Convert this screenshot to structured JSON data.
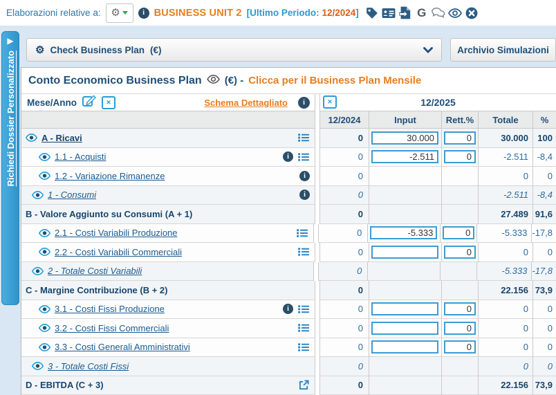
{
  "topbar": {
    "label": "Elaborazioni relative a:",
    "business_unit": "BUSINESS UNIT 2",
    "period_prefix": "[Ultimo Periodo:",
    "period": "12/2024",
    "period_suffix": "]",
    "google_letter": "G"
  },
  "sidebar": {
    "tab_label": "Richiedi Dossier Personalizzato"
  },
  "toolbar": {
    "plan_selector_label": "Check Business Plan",
    "plan_selector_currency": "(€)",
    "archive_button": "Archivio Simulazioni"
  },
  "panel": {
    "title": "Conto Economico Business Plan",
    "currency_suffix": "(€) -",
    "monthly_link": "Clicca per il Business Plan Mensile"
  },
  "table": {
    "corner_header": "Mese/Anno",
    "schema_link": "Schema Dettagliato",
    "period_header": "12/2025",
    "columns": [
      "12/2024",
      "Input",
      "Rett.%",
      "Totale",
      "%"
    ],
    "rows": [
      {
        "label": "A - Ricavi",
        "style": "alink",
        "indent": 0,
        "eye": true,
        "list": true,
        "prev": "0",
        "input": "30.000",
        "rett": "0",
        "totale": "30.000",
        "pct": "100"
      },
      {
        "label": "1.1 - Acquisti",
        "style": "det",
        "indent": 2,
        "eye": true,
        "info": true,
        "list": true,
        "prev": "0",
        "input": "-2.511",
        "rett": "0",
        "totale": "-2.511",
        "pct": "-8,4"
      },
      {
        "label": "1.2 - Variazione Rimanenze",
        "style": "det",
        "indent": 2,
        "eye": true,
        "info": true,
        "prev": "0",
        "totale": "0",
        "pct": "0"
      },
      {
        "label": "1 - Consumi",
        "style": "tot",
        "indent": 1,
        "eye": true,
        "info": true,
        "prev": "0",
        "totale": "-2.511",
        "pct": "-8,4"
      },
      {
        "label": "B - Valore Aggiunto su Consumi (A + 1)",
        "style": "sec",
        "indent": 0,
        "prev": "0",
        "totale": "27.489",
        "pct": "91,6"
      },
      {
        "label": "2.1 - Costi Variabili Produzione",
        "style": "det",
        "indent": 2,
        "eye": true,
        "list": true,
        "prev": "0",
        "input": "-5.333",
        "rett": "0",
        "totale": "-5.333",
        "pct": "-17,8"
      },
      {
        "label": "2.2 - Costi Variabili Commerciali",
        "style": "det",
        "indent": 2,
        "eye": true,
        "list": true,
        "prev": "0",
        "input": "",
        "rett": "0",
        "totale": "0",
        "pct": "0"
      },
      {
        "label": "2 - Totale Costi Variabili",
        "style": "tot",
        "indent": 1,
        "eye": true,
        "prev": "0",
        "totale": "-5.333",
        "pct": "-17,8"
      },
      {
        "label": "C - Margine Contribuzione (B + 2)",
        "style": "sec",
        "indent": 0,
        "prev": "0",
        "totale": "22.156",
        "pct": "73,9"
      },
      {
        "label": "3.1 - Costi Fissi Produzione",
        "style": "det",
        "indent": 2,
        "eye": true,
        "info": true,
        "list": true,
        "prev": "0",
        "input": "",
        "rett": "0",
        "totale": "0",
        "pct": "0"
      },
      {
        "label": "3.2 - Costi Fissi Commerciali",
        "style": "det",
        "indent": 2,
        "eye": true,
        "list": true,
        "prev": "0",
        "input": "",
        "rett": "0",
        "totale": "0",
        "pct": "0"
      },
      {
        "label": "3.3 - Costi Generali Amministrativi",
        "style": "det",
        "indent": 2,
        "eye": true,
        "list": true,
        "prev": "0",
        "input": "",
        "rett": "0",
        "totale": "0",
        "pct": "0"
      },
      {
        "label": "3 - Totale Costi Fissi",
        "style": "tot",
        "indent": 1,
        "eye": true,
        "prev": "0",
        "totale": "0",
        "pct": "0"
      },
      {
        "label": "D - EBITDA (C + 3)",
        "style": "sec",
        "indent": 0,
        "ext": true,
        "prev": "0",
        "totale": "22.156",
        "pct": "73,9"
      }
    ]
  },
  "colors": {
    "dark_blue": "#1f4e79",
    "link_blue": "#1b5a8d",
    "value_blue": "#2b6ca3",
    "orange": "#e67e22",
    "period_orange": "#e05d0d",
    "tab_blue": "#3da2d9",
    "icon_blue": "#2e9bd6",
    "icon_navy": "#2c5d84",
    "input_border": "#3d9bd5",
    "light_blue_bg": "#d9e6f3"
  }
}
